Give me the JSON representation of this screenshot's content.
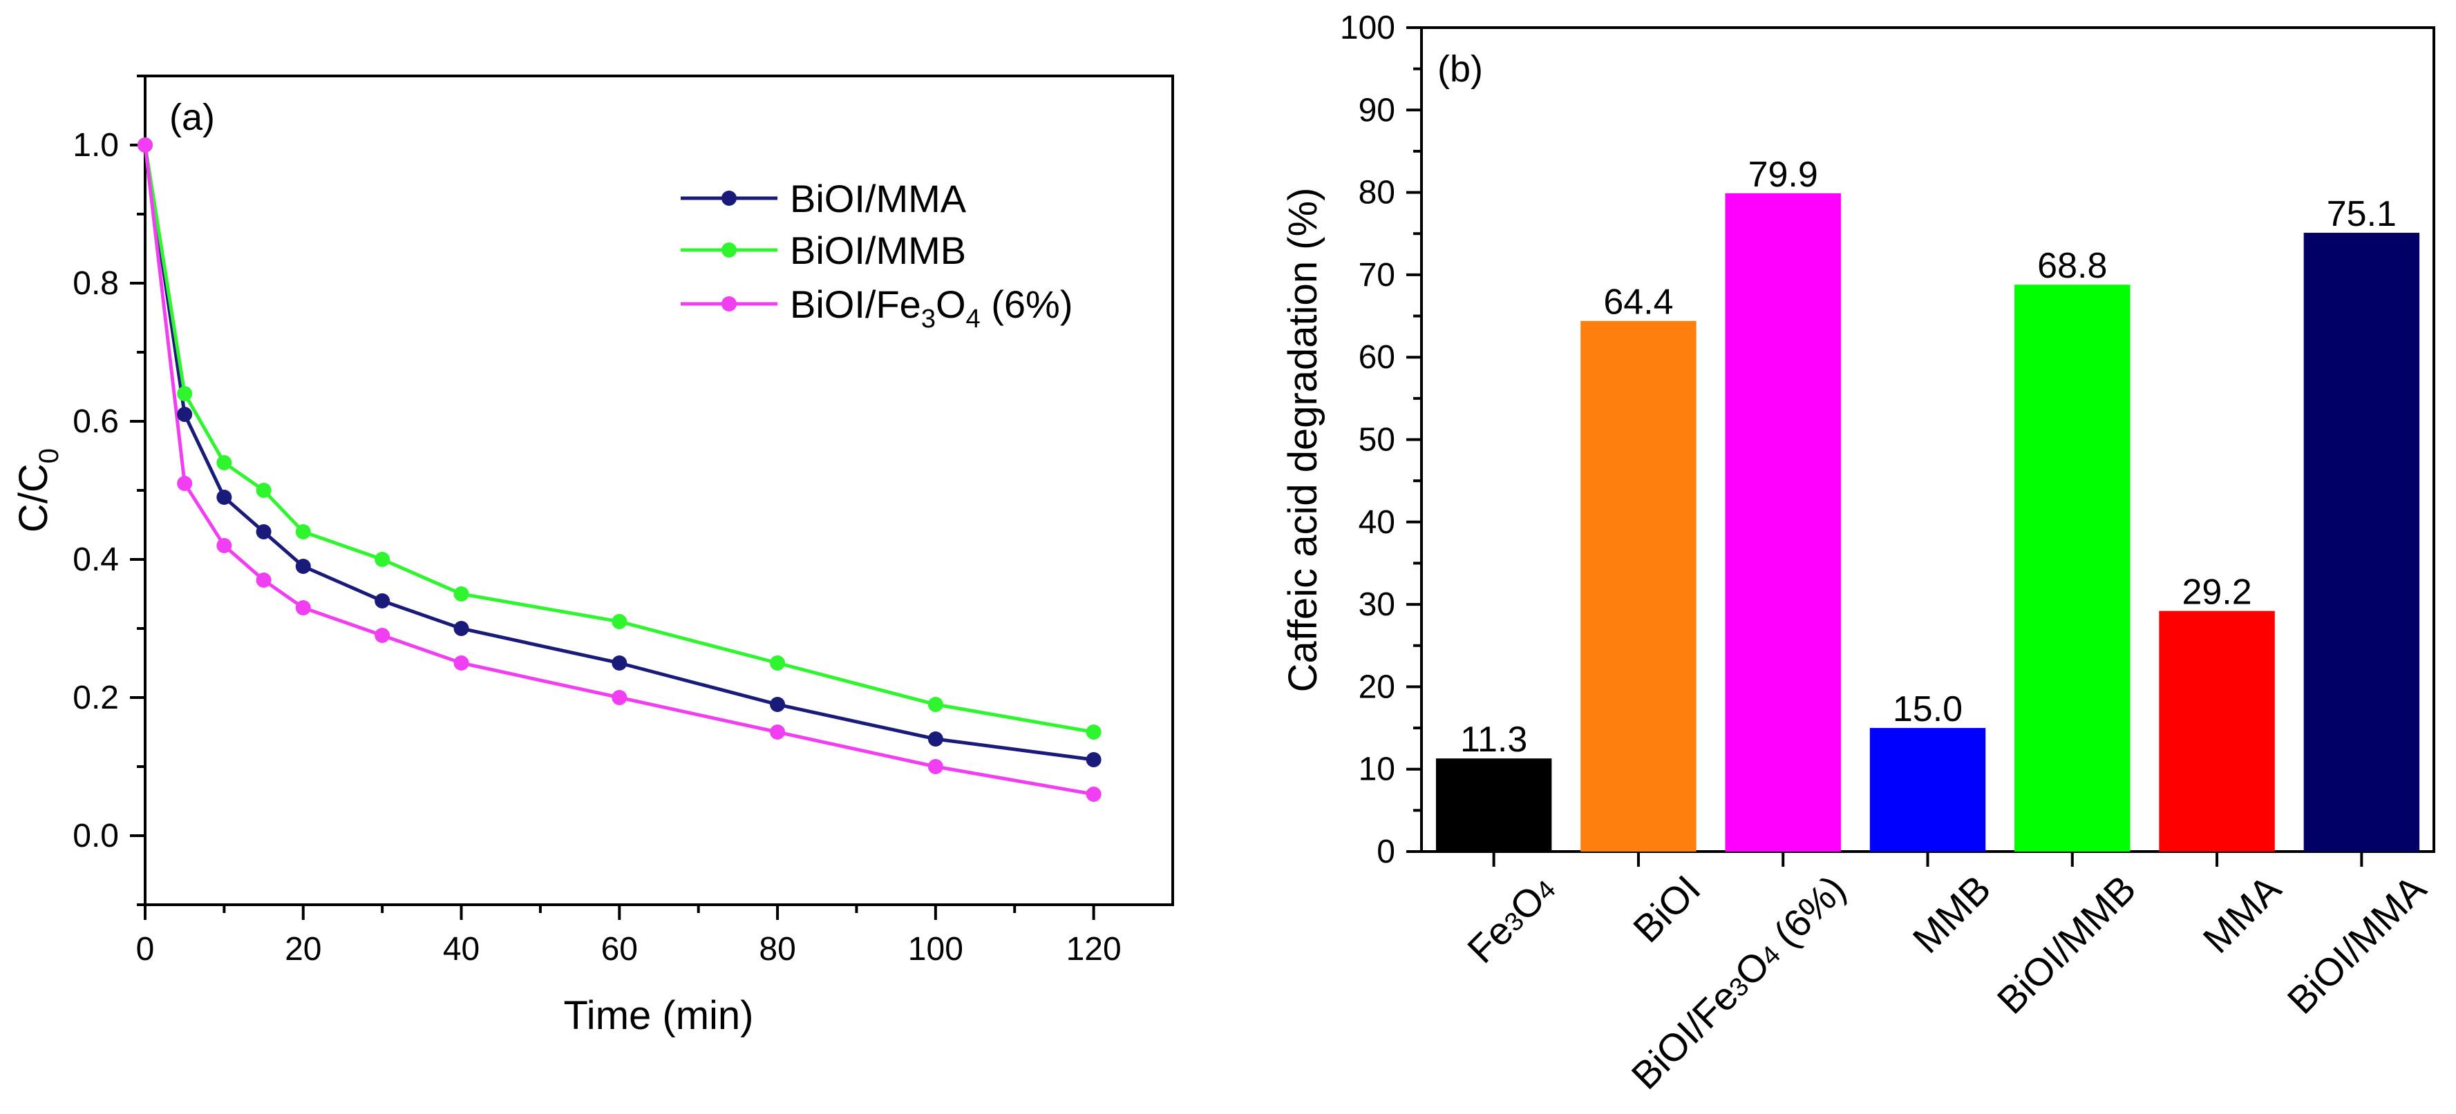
{
  "chart_data": [
    {
      "type": "line",
      "panel_label": "(a)",
      "xlabel": "Time (min)",
      "ylabel": {
        "main": "C/C",
        "sub": "0"
      },
      "xlim": [
        0,
        130
      ],
      "ylim": [
        -0.1,
        1.1
      ],
      "xticks": [
        "0",
        "20",
        "40",
        "60",
        "80",
        "100",
        "120"
      ],
      "yticks": [
        "0.0",
        "0.2",
        "0.4",
        "0.6",
        "0.8",
        "1.0"
      ],
      "legend_position": "top-right",
      "x": [
        0,
        5,
        10,
        15,
        20,
        30,
        40,
        60,
        80,
        100,
        120
      ],
      "series": [
        {
          "name": "BiOI/MMA",
          "color": "#1a1a7a",
          "values": [
            1.0,
            0.61,
            0.49,
            0.44,
            0.39,
            0.34,
            0.3,
            0.25,
            0.19,
            0.14,
            0.11
          ]
        },
        {
          "name": "BiOI/MMB",
          "color": "#2ef52e",
          "values": [
            1.0,
            0.64,
            0.54,
            0.5,
            0.44,
            0.4,
            0.35,
            0.31,
            0.25,
            0.19,
            0.15
          ]
        },
        {
          "name": "BiOI/Fe3O4 (6%)",
          "color": "#f23ef2",
          "values": [
            1.0,
            0.51,
            0.42,
            0.37,
            0.33,
            0.29,
            0.25,
            0.2,
            0.15,
            0.1,
            0.06
          ]
        }
      ],
      "legend_labels": [
        {
          "parts": [
            "BiOI/MMA"
          ]
        },
        {
          "parts": [
            "BiOI/MMB"
          ]
        },
        {
          "parts": [
            "BiOI/Fe",
            "3",
            "O",
            "4",
            " (6%)"
          ]
        }
      ]
    },
    {
      "type": "bar",
      "panel_label": "(b)",
      "ylabel": "Caffeic acid degradation (%)",
      "ylim": [
        0,
        100
      ],
      "yticks": [
        "0",
        "10",
        "20",
        "30",
        "40",
        "50",
        "60",
        "70",
        "80",
        "90",
        "100"
      ],
      "categories": [
        "Fe3O4",
        "BiOI",
        "BiOI/Fe3O4 (6%)",
        "MMB",
        "BiOI/MMB",
        "MMA",
        "BiOI/MMA"
      ],
      "category_labels": [
        {
          "parts": [
            "Fe",
            "3",
            "O",
            "4"
          ]
        },
        {
          "parts": [
            "BiOI"
          ]
        },
        {
          "parts": [
            "BiOI/Fe",
            "3",
            "O",
            "4",
            " (6%)"
          ]
        },
        {
          "parts": [
            "MMB"
          ]
        },
        {
          "parts": [
            "BiOI/MMB"
          ]
        },
        {
          "parts": [
            "MMA"
          ]
        },
        {
          "parts": [
            "BiOI/MMA"
          ]
        }
      ],
      "values": [
        11.3,
        64.4,
        79.9,
        15.0,
        68.8,
        29.2,
        75.1
      ],
      "value_labels": [
        "11.3",
        "64.4",
        "79.9",
        "15.0",
        "68.8",
        "29.2",
        "75.1"
      ],
      "colors": [
        "#000000",
        "#ff7f0e",
        "#ff00ff",
        "#0000ff",
        "#00ff00",
        "#ff0000",
        "#000066"
      ]
    }
  ]
}
